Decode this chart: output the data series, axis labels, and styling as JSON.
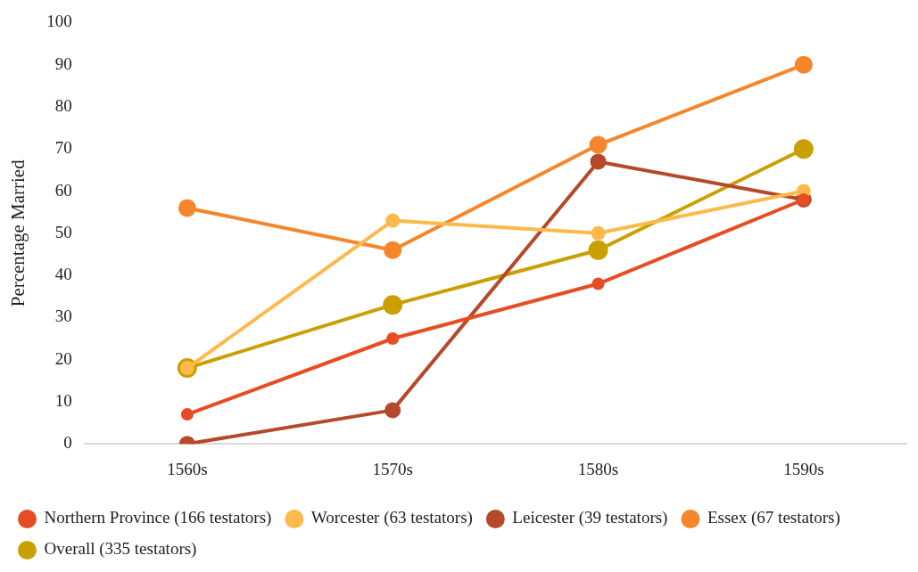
{
  "chart_data": {
    "type": "line",
    "ylabel": "Percentage Married",
    "categories": [
      "1560s",
      "1570s",
      "1580s",
      "1590s"
    ],
    "series": [
      {
        "name": "Northern Province (166 testators)",
        "color": "#e84c22",
        "values": [
          7,
          25,
          38,
          58
        ]
      },
      {
        "name": "Worcester (63 testators)",
        "color": "#fdb94a",
        "values": [
          18,
          53,
          50,
          60
        ]
      },
      {
        "name": "Leicester (39 testators)",
        "color": "#b5492a",
        "values": [
          0,
          8,
          67,
          58
        ]
      },
      {
        "name": "Essex (67 testators)",
        "color": "#f6862b",
        "values": [
          56,
          46,
          71,
          90
        ]
      },
      {
        "name": "Overall (335 testators)",
        "color": "#c9a000",
        "values": [
          18,
          33,
          46,
          70
        ]
      }
    ],
    "ylim": [
      0,
      100
    ],
    "yticks": [
      0,
      10,
      20,
      30,
      40,
      50,
      60,
      70,
      80,
      90,
      100
    ],
    "grid": false,
    "legend": "bottom",
    "marker": "circle",
    "line_style": "solid"
  }
}
